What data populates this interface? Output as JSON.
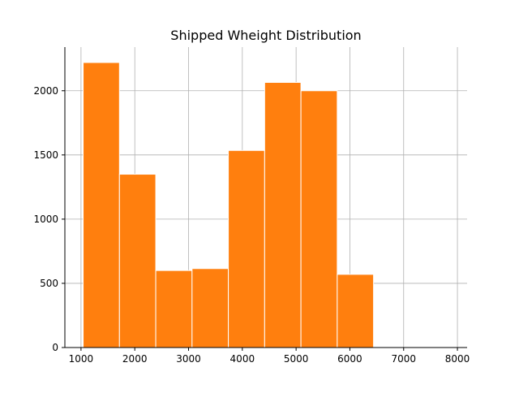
{
  "chart_data": {
    "type": "histogram",
    "title": "Shipped Wheight Distribution",
    "xlabel": "",
    "ylabel": "",
    "bins": [
      {
        "x_start": 1040,
        "x_end": 1715,
        "value": 2220
      },
      {
        "x_start": 1715,
        "x_end": 2390,
        "value": 1350
      },
      {
        "x_start": 2390,
        "x_end": 3065,
        "value": 600
      },
      {
        "x_start": 3065,
        "x_end": 3740,
        "value": 615
      },
      {
        "x_start": 3740,
        "x_end": 4415,
        "value": 1535
      },
      {
        "x_start": 4415,
        "x_end": 5090,
        "value": 2065
      },
      {
        "x_start": 5090,
        "x_end": 5765,
        "value": 2000
      },
      {
        "x_start": 5765,
        "x_end": 6440,
        "value": 570
      }
    ],
    "xlim": [
      700,
      8180
    ],
    "ylim": [
      0,
      2340
    ],
    "xticks": [
      1000,
      2000,
      3000,
      4000,
      5000,
      6000,
      7000,
      8000
    ],
    "yticks": [
      0,
      500,
      1000,
      1500,
      2000
    ],
    "grid": true,
    "bar_color": "#ff7f0e",
    "bar_edge_color": "#ffffff",
    "grid_color": "#b0b0b0",
    "axis_color": "#000000"
  }
}
